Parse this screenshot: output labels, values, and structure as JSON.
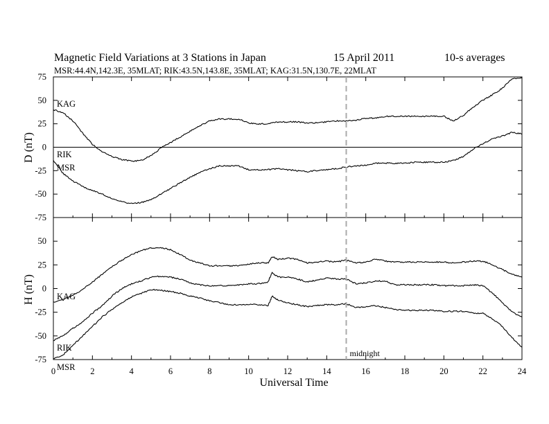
{
  "chart_data": {
    "type": "line",
    "title": "Magnetic Field Variations at 3 Stations in Japan",
    "date": "15  April     2011",
    "averaging": "10-s averages",
    "subtitle": "MSR:44.4N,142.3E, 35MLAT;   RIK:43.5N,143.8E, 35MLAT;   KAG:31.5N,130.7E, 22MLAT",
    "xlabel": "Universal Time",
    "xlim": [
      0,
      24
    ],
    "xticks": [
      0,
      2,
      4,
      6,
      8,
      10,
      12,
      14,
      16,
      18,
      20,
      22,
      24
    ],
    "grid": false,
    "annotation": {
      "text": "midnight",
      "x": 15
    },
    "panels": [
      {
        "ylabel": "D (nT)",
        "ylim": [
          -75,
          75
        ],
        "yticks": [
          75,
          50,
          25,
          0,
          -25,
          -50,
          -75
        ],
        "zero_line": true,
        "series": [
          {
            "name": "KAG",
            "x": [
              0,
              0.5,
              1,
              1.5,
              2,
              2.5,
              3,
              3.5,
              4,
              4.5,
              5,
              5.5,
              6,
              6.5,
              7,
              7.5,
              8,
              8.5,
              9,
              9.5,
              10,
              10.5,
              11,
              11.5,
              12,
              12.5,
              13,
              13.5,
              14,
              14.5,
              15,
              15.5,
              16,
              16.5,
              17,
              17.5,
              18,
              18.5,
              19,
              19.5,
              20,
              20.5,
              21,
              21.5,
              22,
              22.5,
              23,
              23.5,
              24
            ],
            "y": [
              40,
              37,
              28,
              15,
              3,
              -5,
              -10,
              -13,
              -15,
              -14,
              -9,
              -1,
              5,
              11,
              17,
              23,
              28,
              30,
              30,
              30,
              26,
              25,
              25,
              27,
              27,
              27,
              26,
              26,
              27,
              28,
              28,
              29,
              31,
              31,
              33,
              33,
              33,
              33,
              33,
              33,
              33,
              28,
              34,
              43,
              50,
              56,
              63,
              73,
              74
            ]
          },
          {
            "name": "RIK / MSR",
            "x": [
              0,
              0.5,
              1,
              1.5,
              2,
              2.5,
              3,
              3.5,
              4,
              4.5,
              5,
              5.5,
              6,
              6.5,
              7,
              7.5,
              8,
              8.5,
              9,
              9.5,
              10,
              10.5,
              11,
              11.5,
              12,
              12.5,
              13,
              13.5,
              14,
              14.5,
              15,
              15.5,
              16,
              16.5,
              17,
              17.5,
              18,
              18.5,
              19,
              19.5,
              20,
              20.5,
              21,
              21.5,
              22,
              22.5,
              23,
              23.5,
              24
            ],
            "y": [
              -14,
              -28,
              -36,
              -42,
              -46,
              -50,
              -55,
              -58,
              -60,
              -59,
              -56,
              -50,
              -44,
              -38,
              -32,
              -27,
              -23,
              -20,
              -20,
              -20,
              -24,
              -24,
              -24,
              -23,
              -24,
              -25,
              -26,
              -25,
              -24,
              -23,
              -21,
              -20,
              -19,
              -17,
              -17,
              -17,
              -17,
              -16,
              -16,
              -16,
              -16,
              -14,
              -10,
              -2,
              4,
              9,
              12,
              16,
              14
            ]
          }
        ]
      },
      {
        "ylabel": "H (nT)",
        "ylim": [
          -75,
          75
        ],
        "yticks": [
          50,
          25,
          0,
          -25,
          -50,
          -75
        ],
        "zero_line": false,
        "series": [
          {
            "name": "KAG",
            "x": [
              0,
              0.5,
              1,
              1.5,
              2,
              2.5,
              3,
              3.5,
              4,
              4.5,
              5,
              5.5,
              6,
              6.5,
              7,
              7.5,
              8,
              8.5,
              9,
              9.5,
              10,
              10.5,
              11,
              11.2,
              11.5,
              12,
              12.5,
              13,
              13.5,
              14,
              14.5,
              15,
              15.5,
              16,
              16.5,
              17,
              17.5,
              18,
              18.5,
              19,
              19.5,
              20,
              20.5,
              21,
              21.5,
              22,
              22.5,
              23,
              23.5,
              24
            ],
            "y": [
              -14,
              -12,
              -7,
              -1,
              7,
              15,
              23,
              30,
              36,
              40,
              43,
              43,
              41,
              36,
              30,
              27,
              24,
              24,
              24,
              24,
              26,
              27,
              27,
              34,
              31,
              32,
              31,
              27,
              28,
              29,
              28,
              30,
              27,
              28,
              31,
              29,
              28,
              28,
              28,
              28,
              28,
              28,
              27,
              28,
              29,
              29,
              25,
              20,
              15,
              12
            ]
          },
          {
            "name": "RIK",
            "x": [
              0,
              0.5,
              1,
              1.5,
              2,
              2.5,
              3,
              3.5,
              4,
              4.5,
              5,
              5.5,
              6,
              6.5,
              7,
              7.5,
              8,
              8.5,
              9,
              9.5,
              10,
              10.5,
              11,
              11.2,
              11.5,
              12,
              12.5,
              13,
              13.5,
              14,
              14.5,
              15,
              15.5,
              16,
              16.5,
              17,
              17.5,
              18,
              18.5,
              19,
              19.5,
              20,
              20.5,
              21,
              21.5,
              22,
              22.5,
              23,
              23.5,
              24
            ],
            "y": [
              -55,
              -50,
              -42,
              -35,
              -26,
              -18,
              -8,
              0,
              5,
              8,
              12,
              13,
              12,
              10,
              6,
              4,
              3,
              3,
              3,
              4,
              5,
              5,
              7,
              17,
              12,
              12,
              10,
              7,
              9,
              11,
              10,
              10,
              5,
              6,
              8,
              8,
              4,
              4,
              4,
              4,
              4,
              3,
              3,
              3,
              4,
              3,
              -5,
              -15,
              -25,
              -30
            ]
          },
          {
            "name": "MSR",
            "x": [
              0,
              0.5,
              1,
              1.5,
              2,
              2.5,
              3,
              3.5,
              4,
              4.5,
              5,
              5.5,
              6,
              6.5,
              7,
              7.5,
              8,
              8.5,
              9,
              9.5,
              10,
              10.5,
              11,
              11.2,
              11.5,
              12,
              12.5,
              13,
              13.5,
              14,
              14.5,
              15,
              15.5,
              16,
              16.5,
              17,
              17.5,
              18,
              18.5,
              19,
              19.5,
              20,
              20.5,
              21,
              21.5,
              22,
              22.5,
              23,
              23.5,
              24
            ],
            "y": [
              -74,
              -70,
              -60,
              -50,
              -40,
              -30,
              -22,
              -15,
              -9,
              -5,
              -1,
              -2,
              -3,
              -5,
              -8,
              -10,
              -13,
              -15,
              -17,
              -17,
              -17,
              -17,
              -18,
              -8,
              -12,
              -15,
              -17,
              -19,
              -18,
              -17,
              -17,
              -16,
              -20,
              -19,
              -18,
              -20,
              -22,
              -23,
              -23,
              -23,
              -23,
              -24,
              -24,
              -24,
              -26,
              -26,
              -32,
              -40,
              -52,
              -62
            ]
          }
        ]
      }
    ]
  }
}
